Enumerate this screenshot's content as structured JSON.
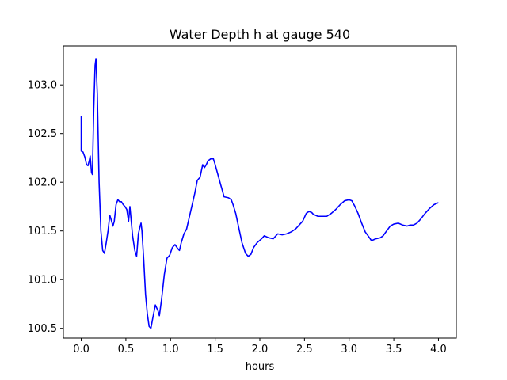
{
  "chart_data": {
    "type": "line",
    "title": "Water Depth h at gauge 540",
    "xlabel": "hours",
    "ylabel": "",
    "xlim": [
      -0.2,
      4.2
    ],
    "ylim": [
      100.4,
      103.4
    ],
    "x_ticks": [
      0.0,
      0.5,
      1.0,
      1.5,
      2.0,
      2.5,
      3.0,
      3.5,
      4.0
    ],
    "x_tick_labels": [
      "0.0",
      "0.5",
      "1.0",
      "1.5",
      "2.0",
      "2.5",
      "3.0",
      "3.5",
      "4.0"
    ],
    "y_ticks": [
      100.5,
      101.0,
      101.5,
      102.0,
      102.5,
      103.0
    ],
    "y_tick_labels": [
      "100.5",
      "101.0",
      "101.5",
      "102.0",
      "102.5",
      "103.0"
    ],
    "grid": false,
    "legend": "none",
    "series": [
      {
        "color": "#0000ff",
        "points": [
          [
            0.0,
            102.68
          ],
          [
            0.0,
            102.32
          ],
          [
            0.02,
            102.31
          ],
          [
            0.04,
            102.26
          ],
          [
            0.06,
            102.18
          ],
          [
            0.075,
            102.17
          ],
          [
            0.09,
            102.22
          ],
          [
            0.1,
            102.27
          ],
          [
            0.115,
            102.1
          ],
          [
            0.125,
            102.08
          ],
          [
            0.14,
            102.75
          ],
          [
            0.155,
            103.2
          ],
          [
            0.165,
            103.27
          ],
          [
            0.18,
            102.9
          ],
          [
            0.2,
            102.0
          ],
          [
            0.22,
            101.5
          ],
          [
            0.24,
            101.3
          ],
          [
            0.26,
            101.27
          ],
          [
            0.28,
            101.38
          ],
          [
            0.3,
            101.5
          ],
          [
            0.32,
            101.66
          ],
          [
            0.34,
            101.6
          ],
          [
            0.355,
            101.55
          ],
          [
            0.37,
            101.6
          ],
          [
            0.39,
            101.77
          ],
          [
            0.41,
            101.82
          ],
          [
            0.43,
            101.8
          ],
          [
            0.45,
            101.8
          ],
          [
            0.47,
            101.77
          ],
          [
            0.49,
            101.75
          ],
          [
            0.51,
            101.72
          ],
          [
            0.53,
            101.6
          ],
          [
            0.545,
            101.75
          ],
          [
            0.56,
            101.6
          ],
          [
            0.575,
            101.45
          ],
          [
            0.6,
            101.3
          ],
          [
            0.62,
            101.24
          ],
          [
            0.64,
            101.47
          ],
          [
            0.66,
            101.55
          ],
          [
            0.67,
            101.58
          ],
          [
            0.68,
            101.5
          ],
          [
            0.7,
            101.2
          ],
          [
            0.72,
            100.85
          ],
          [
            0.74,
            100.65
          ],
          [
            0.76,
            100.52
          ],
          [
            0.78,
            100.5
          ],
          [
            0.8,
            100.6
          ],
          [
            0.83,
            100.74
          ],
          [
            0.86,
            100.68
          ],
          [
            0.875,
            100.63
          ],
          [
            0.9,
            100.8
          ],
          [
            0.93,
            101.05
          ],
          [
            0.96,
            101.22
          ],
          [
            0.99,
            101.25
          ],
          [
            1.02,
            101.33
          ],
          [
            1.05,
            101.36
          ],
          [
            1.08,
            101.32
          ],
          [
            1.1,
            101.3
          ],
          [
            1.12,
            101.38
          ],
          [
            1.15,
            101.47
          ],
          [
            1.18,
            101.52
          ],
          [
            1.21,
            101.64
          ],
          [
            1.24,
            101.76
          ],
          [
            1.27,
            101.88
          ],
          [
            1.3,
            102.02
          ],
          [
            1.33,
            102.05
          ],
          [
            1.36,
            102.18
          ],
          [
            1.38,
            102.15
          ],
          [
            1.4,
            102.18
          ],
          [
            1.42,
            102.22
          ],
          [
            1.45,
            102.24
          ],
          [
            1.48,
            102.24
          ],
          [
            1.5,
            102.18
          ],
          [
            1.53,
            102.08
          ],
          [
            1.56,
            101.98
          ],
          [
            1.6,
            101.85
          ],
          [
            1.65,
            101.84
          ],
          [
            1.68,
            101.82
          ],
          [
            1.7,
            101.77
          ],
          [
            1.73,
            101.68
          ],
          [
            1.76,
            101.55
          ],
          [
            1.8,
            101.38
          ],
          [
            1.84,
            101.27
          ],
          [
            1.87,
            101.24
          ],
          [
            1.9,
            101.26
          ],
          [
            1.93,
            101.33
          ],
          [
            1.97,
            101.38
          ],
          [
            2.02,
            101.42
          ],
          [
            2.05,
            101.45
          ],
          [
            2.1,
            101.43
          ],
          [
            2.15,
            101.42
          ],
          [
            2.2,
            101.47
          ],
          [
            2.25,
            101.46
          ],
          [
            2.3,
            101.47
          ],
          [
            2.35,
            101.49
          ],
          [
            2.4,
            101.52
          ],
          [
            2.45,
            101.57
          ],
          [
            2.48,
            101.6
          ],
          [
            2.52,
            101.68
          ],
          [
            2.55,
            101.7
          ],
          [
            2.58,
            101.69
          ],
          [
            2.6,
            101.67
          ],
          [
            2.65,
            101.65
          ],
          [
            2.7,
            101.65
          ],
          [
            2.75,
            101.65
          ],
          [
            2.8,
            101.68
          ],
          [
            2.85,
            101.72
          ],
          [
            2.9,
            101.77
          ],
          [
            2.95,
            101.81
          ],
          [
            3.0,
            101.82
          ],
          [
            3.03,
            101.81
          ],
          [
            3.06,
            101.76
          ],
          [
            3.1,
            101.68
          ],
          [
            3.14,
            101.58
          ],
          [
            3.18,
            101.49
          ],
          [
            3.22,
            101.44
          ],
          [
            3.25,
            101.4
          ],
          [
            3.3,
            101.42
          ],
          [
            3.35,
            101.43
          ],
          [
            3.38,
            101.45
          ],
          [
            3.42,
            101.5
          ],
          [
            3.46,
            101.55
          ],
          [
            3.5,
            101.57
          ],
          [
            3.55,
            101.58
          ],
          [
            3.6,
            101.56
          ],
          [
            3.65,
            101.55
          ],
          [
            3.68,
            101.56
          ],
          [
            3.72,
            101.56
          ],
          [
            3.76,
            101.58
          ],
          [
            3.8,
            101.62
          ],
          [
            3.85,
            101.68
          ],
          [
            3.9,
            101.73
          ],
          [
            3.95,
            101.77
          ],
          [
            4.0,
            101.79
          ]
        ]
      }
    ]
  }
}
